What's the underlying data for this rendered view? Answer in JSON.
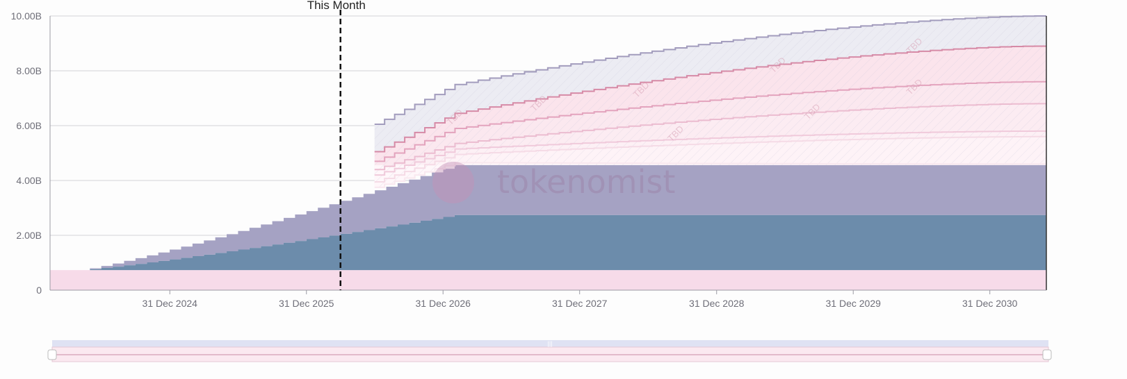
{
  "chart_data": {
    "type": "area",
    "subtype": "stacked step area (token unlock schedule)",
    "x_type": "date",
    "x_range": [
      "2024-02-15",
      "2031-05-31"
    ],
    "ylim": [
      0,
      10000000000
    ],
    "y_ticks": [
      0,
      2000000000,
      4000000000,
      6000000000,
      8000000000,
      10000000000
    ],
    "y_tick_labels": [
      "0",
      "2.00B",
      "4.00B",
      "6.00B",
      "8.00B",
      "10.00B"
    ],
    "x_ticks": [
      "2024-12-31",
      "2025-12-31",
      "2026-12-31",
      "2027-12-31",
      "2028-12-31",
      "2029-12-31",
      "2030-12-31"
    ],
    "x_tick_labels": [
      "31 Dec 2024",
      "31 Dec 2025",
      "31 Dec 2026",
      "31 Dec 2027",
      "31 Dec 2028",
      "31 Dec 2029",
      "31 Dec 2030"
    ],
    "grid": true,
    "marker": {
      "label": "This Month",
      "date": "2026-04-01"
    },
    "watermark": "tokenomist",
    "annotation_text": "TBD",
    "layers": [
      {
        "color": "#f7dbe9",
        "start": "2024-02-15",
        "end": "2031-05-31",
        "value_start": 730000000,
        "value_end": 730000000,
        "step_end": "2031-05-31",
        "steps": 1
      },
      {
        "color": "#6c8cab",
        "start": "2024-05-01",
        "end": "2031-05-31",
        "value_start": 0,
        "value_end": 2010000000,
        "step_end": "2027-01-31",
        "steps": 33
      },
      {
        "color": "#a5a2c3",
        "start": "2024-05-01",
        "end": "2031-05-31",
        "value_start": 0,
        "value_end": 1820000000,
        "step_end": "2027-01-31",
        "steps": 33
      }
    ],
    "projected_lines": [
      {
        "color": "#a29cbd",
        "start": "2026-07-01",
        "v0": 6050000000,
        "v1": 10000000000,
        "knee_date": "2027-02-01",
        "knee_value": 7500000000,
        "end_date": "2031-04-30"
      },
      {
        "color": "#d68aa6",
        "start": "2026-07-01",
        "v0": 5050000000,
        "v1": 8900000000,
        "knee_date": "2027-02-01",
        "knee_value": 6450000000,
        "end_date": "2031-04-30"
      },
      {
        "color": "#e3a3bd",
        "start": "2026-07-01",
        "v0": 4700000000,
        "v1": 7600000000,
        "knee_date": "2027-02-01",
        "knee_value": 5900000000,
        "end_date": "2031-04-30"
      },
      {
        "color": "#ebbcd0",
        "start": "2026-07-01",
        "v0": 4400000000,
        "v1": 6800000000,
        "knee_date": "2027-02-01",
        "knee_value": 5350000000,
        "end_date": "2031-04-30"
      },
      {
        "color": "#f0cadb",
        "start": "2026-07-01",
        "v0": 4200000000,
        "v1": 5800000000,
        "knee_date": "2027-02-01",
        "knee_value": 5150000000,
        "end_date": "2031-04-30"
      },
      {
        "color": "#f5dbe6",
        "start": "2026-07-01",
        "v0": 3950000000,
        "v1": 5600000000,
        "knee_date": "2027-02-01",
        "knee_value": 4950000000,
        "end_date": "2031-04-30"
      },
      {
        "color": "#f9e8ef",
        "start": "2026-07-01",
        "v0": 3750000000,
        "v1": 4600000000,
        "knee_date": "2027-02-01",
        "knee_value": 4650000000,
        "end_date": "2031-04-30"
      }
    ],
    "zoom_navigator": true
  }
}
